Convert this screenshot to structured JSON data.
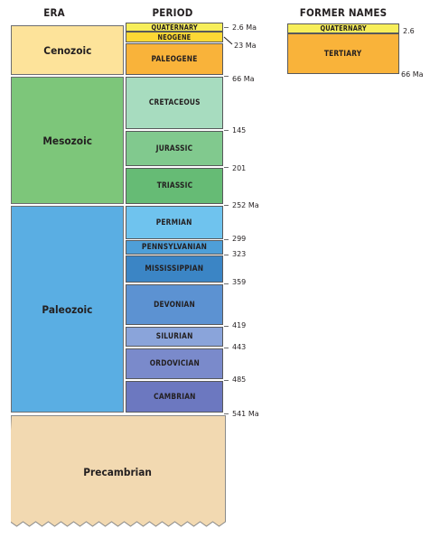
{
  "headers": {
    "era": "ERA",
    "period": "PERIOD",
    "former": "FORMER NAMES"
  },
  "eras": [
    {
      "name": "Cenozoic",
      "color": "#fde39a"
    },
    {
      "name": "Mesozoic",
      "color": "#7dc67a"
    },
    {
      "name": "Paleozoic",
      "color": "#5aaee3"
    },
    {
      "name": "Precambrian",
      "color": "#f2d9b1"
    }
  ],
  "periods": [
    {
      "name": "QUATERNARY",
      "color": "#f7ee5a"
    },
    {
      "name": "NEOGENE",
      "color": "#fdd835"
    },
    {
      "name": "PALEOGENE",
      "color": "#f9b33a"
    },
    {
      "name": "CRETACEOUS",
      "color": "#a7dcbf"
    },
    {
      "name": "JURASSIC",
      "color": "#81c98e"
    },
    {
      "name": "TRIASSIC",
      "color": "#66bb75"
    },
    {
      "name": "PERMIAN",
      "color": "#6fc3ee"
    },
    {
      "name": "PENNSYLVANIAN",
      "color": "#4e9fd8"
    },
    {
      "name": "MISSISSIPPIAN",
      "color": "#3b85c5"
    },
    {
      "name": "DEVONIAN",
      "color": "#5c92d2"
    },
    {
      "name": "SILURIAN",
      "color": "#8aa4da"
    },
    {
      "name": "ORDOVICIAN",
      "color": "#7a8acb"
    },
    {
      "name": "CAMBRIAN",
      "color": "#6c78c0"
    }
  ],
  "boundaries": [
    "2.6 Ma",
    "23 Ma",
    "66 Ma",
    "145",
    "201",
    "252 Ma",
    "299",
    "323",
    "359",
    "419",
    "443",
    "485",
    "541 Ma"
  ],
  "former_names": [
    {
      "name": "QUATERNARY",
      "color": "#f7ee5a",
      "label": "2.6"
    },
    {
      "name": "TERTIARY",
      "color": "#f9b33a",
      "label": "66 Ma"
    }
  ]
}
